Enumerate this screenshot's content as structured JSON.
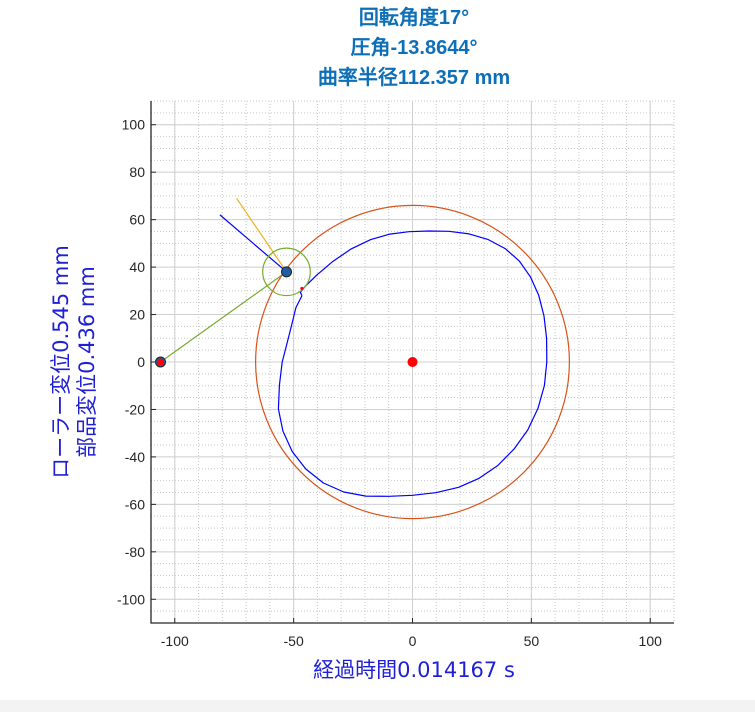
{
  "colors": {
    "title": "#0d6fb8",
    "axis_label": "#1f1fd6",
    "outer_curve": "#d95319",
    "inner_curve": "#0000ff",
    "center_point": "#ff0000",
    "roller_marker": "#1f5fa0",
    "roller_circle": "#77ac30",
    "link_line": "#77ac30",
    "normal_line": "#0000ff",
    "tangent_line": "#edb120",
    "grid_major": "#d0d0d0",
    "grid_minor": "#c8c8c8"
  },
  "chart_data": {
    "type": "line",
    "title_lines": [
      "回転角度17°",
      "圧角-13.8644°",
      "曲率半径112.357  mm"
    ],
    "xlabel": "経過時間0.014167 s",
    "ylabel_lines": [
      "ローラー変位0.545 mm",
      "部品変位0.436 mm"
    ],
    "xlim": [
      -110,
      110
    ],
    "ylim": [
      -110,
      110
    ],
    "xticks": [
      -100,
      -50,
      0,
      50,
      100
    ],
    "yticks": [
      100,
      80,
      60,
      40,
      20,
      0,
      -20,
      -40,
      -60,
      -80,
      -100
    ],
    "minor_grid": true,
    "grid": true,
    "outer_circle": {
      "center": [
        0,
        0
      ],
      "radius": 66
    },
    "inner_profile": {
      "x": [
        -46.5,
        -49,
        -51,
        -53,
        -54.8,
        -56,
        -56.4,
        -54.5,
        -50.6,
        -44.9,
        -37.5,
        -28.9,
        -19.6,
        -9.8,
        0,
        9.8,
        19.4,
        28.0,
        35.9,
        42.7,
        48.5,
        52.8,
        55.5,
        56.5,
        56.4,
        55.3,
        53.1,
        49.6,
        44.9,
        39.0,
        31.9,
        23.8,
        15.3,
        6.8,
        -1.5,
        -9.5,
        -17.6,
        -25.7,
        -33.4,
        -40.1,
        -45.0,
        -47.2,
        -46.5
      ],
      "y": [
        28,
        23,
        15,
        7,
        0,
        -9.8,
        -19.8,
        -29.1,
        -37.7,
        -45.1,
        -51.0,
        -54.8,
        -56.5,
        -56.6,
        -56.2,
        -55.1,
        -52.8,
        -49.0,
        -43.6,
        -36.7,
        -28.6,
        -19.5,
        -9.9,
        0,
        9.9,
        19.4,
        28.1,
        35.9,
        42.6,
        47.8,
        51.6,
        54.0,
        55.1,
        55.2,
        54.9,
        53.9,
        51.6,
        47.7,
        42.5,
        36.8,
        32.0,
        29.4,
        28
      ]
    },
    "center_point": [
      0,
      0
    ],
    "roller": {
      "center": [
        -53,
        38
      ],
      "radius": 10
    },
    "pivot": [
      -106,
      0
    ],
    "contact_point": [
      -46.5,
      31
    ],
    "normal_line": {
      "x": [
        -81,
        -53
      ],
      "y": [
        62,
        38
      ]
    },
    "tangent_line": {
      "x": [
        -74,
        -53
      ],
      "y": [
        69,
        38
      ]
    },
    "link_line": {
      "x": [
        -106,
        -53
      ],
      "y": [
        0,
        38
      ]
    }
  }
}
